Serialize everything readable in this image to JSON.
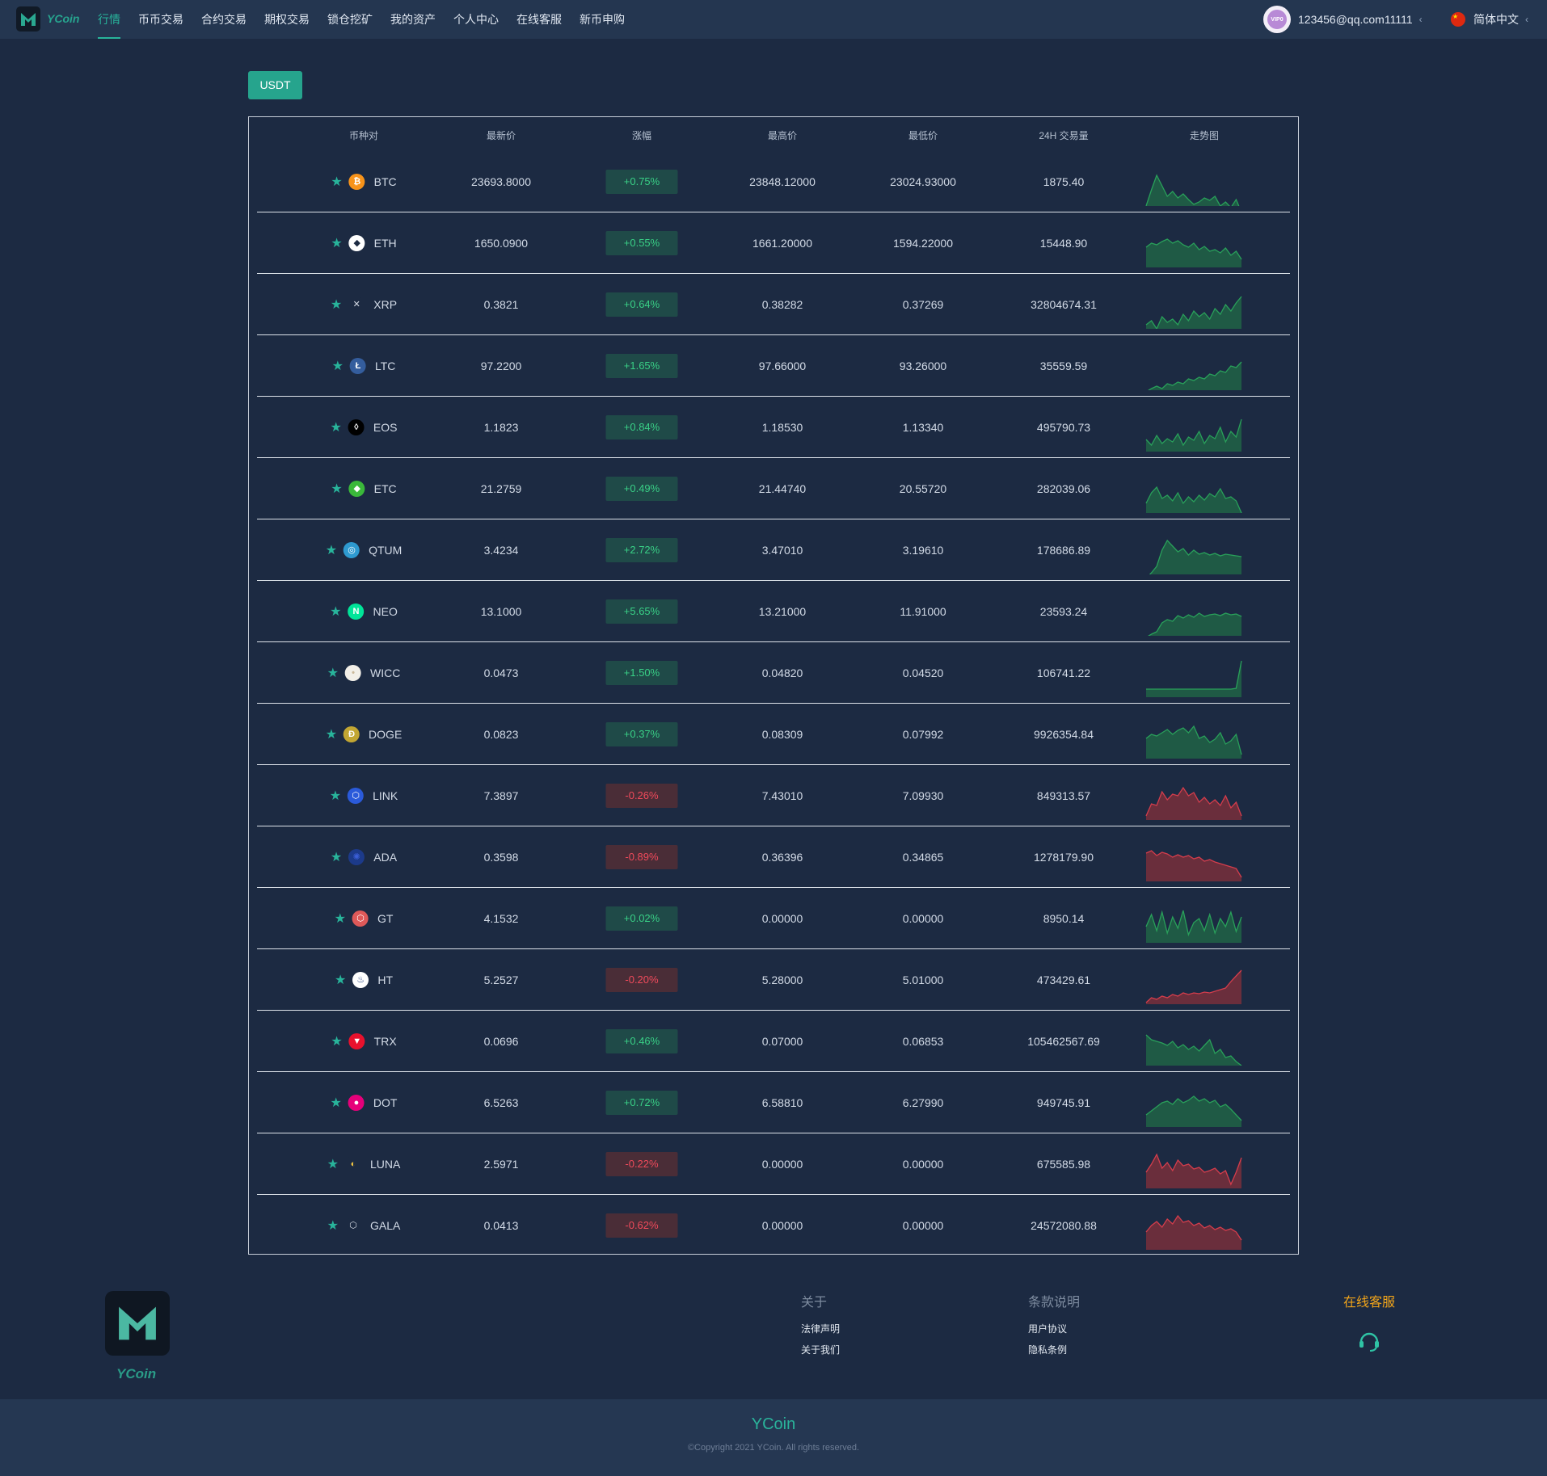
{
  "header": {
    "logo_text": "YCoin",
    "nav": [
      "行情",
      "币币交易",
      "合约交易",
      "期权交易",
      "锁仓挖矿",
      "我的资产",
      "个人中心",
      "在线客服",
      "新币申购"
    ],
    "active_index": 0,
    "avatar_badge": "VIP0",
    "user_email": "123456@qq.com11111",
    "user_caret": "‹",
    "language": "简体中文",
    "language_caret": "‹"
  },
  "market": {
    "tab": "USDT",
    "columns": [
      "币种对",
      "最新价",
      "涨幅",
      "最高价",
      "最低价",
      "24H 交易量",
      "走势图"
    ],
    "rows": [
      {
        "symbol": "BTC",
        "icon": "bitcoin-icon",
        "icon_color": "#f7931a",
        "price": "23693.8000",
        "change": "+0.75%",
        "direction": "up",
        "high": "23848.12000",
        "low": "23024.93000",
        "volume": "1875.40",
        "trend": [
          60,
          40,
          22,
          35,
          48,
          42,
          50,
          45,
          52,
          58,
          55,
          50,
          53,
          48,
          60,
          55,
          62,
          52,
          68
        ]
      },
      {
        "symbol": "ETH",
        "icon": "ethereum-icon",
        "icon_color": "#ffffff",
        "price": "1650.0900",
        "change": "+0.55%",
        "direction": "up",
        "high": "1661.20000",
        "low": "1594.22000",
        "volume": "15448.90",
        "trend": [
          35,
          30,
          32,
          28,
          25,
          30,
          27,
          32,
          35,
          30,
          38,
          34,
          40,
          38,
          42,
          36,
          45,
          40,
          50
        ]
      },
      {
        "symbol": "XRP",
        "icon": "xrp-icon",
        "icon_color": "#1c2a42",
        "price": "0.3821",
        "change": "+0.64%",
        "direction": "up",
        "high": "0.38282",
        "low": "0.37269",
        "volume": "32804674.31",
        "trend": [
          55,
          50,
          60,
          45,
          52,
          48,
          55,
          42,
          50,
          38,
          45,
          40,
          48,
          35,
          42,
          30,
          38,
          28,
          20
        ]
      },
      {
        "symbol": "LTC",
        "icon": "litecoin-icon",
        "icon_color": "#345d9d",
        "price": "97.2200",
        "change": "+1.65%",
        "direction": "up",
        "high": "97.66000",
        "low": "93.26000",
        "volume": "35559.59",
        "trend": [
          62,
          58,
          55,
          58,
          52,
          54,
          50,
          52,
          46,
          48,
          44,
          46,
          40,
          42,
          36,
          38,
          30,
          32,
          25
        ]
      },
      {
        "symbol": "EOS",
        "icon": "eos-icon",
        "icon_color": "#000000",
        "price": "1.1823",
        "change": "+0.84%",
        "direction": "up",
        "high": "1.18530",
        "low": "1.13340",
        "volume": "495790.73",
        "trend": [
          45,
          52,
          40,
          50,
          44,
          48,
          38,
          52,
          42,
          46,
          35,
          50,
          40,
          44,
          30,
          48,
          35,
          42,
          20
        ]
      },
      {
        "symbol": "ETC",
        "icon": "etc-icon",
        "icon_color": "#3ab83a",
        "price": "21.2759",
        "change": "+0.49%",
        "direction": "up",
        "high": "21.44740",
        "low": "20.55720",
        "volume": "282039.06",
        "trend": [
          48,
          35,
          28,
          42,
          38,
          45,
          35,
          48,
          40,
          46,
          38,
          44,
          36,
          40,
          30,
          42,
          40,
          45,
          60
        ]
      },
      {
        "symbol": "QTUM",
        "icon": "qtum-icon",
        "icon_color": "#2e9ad0",
        "price": "3.4234",
        "change": "+2.72%",
        "direction": "up",
        "high": "3.47010",
        "low": "3.19610",
        "volume": "178686.89",
        "trend": [
          65,
          58,
          50,
          30,
          18,
          25,
          32,
          28,
          36,
          30,
          35,
          33,
          36,
          34,
          37,
          35,
          36,
          37,
          38
        ]
      },
      {
        "symbol": "NEO",
        "icon": "neo-icon",
        "icon_color": "#00e599",
        "price": "13.1000",
        "change": "+5.65%",
        "direction": "up",
        "high": "13.21000",
        "low": "11.91000",
        "volume": "23593.24",
        "trend": [
          62,
          58,
          55,
          44,
          40,
          42,
          35,
          38,
          34,
          37,
          32,
          36,
          34,
          33,
          35,
          32,
          34,
          33,
          36
        ]
      },
      {
        "symbol": "WICC",
        "icon": "wicc-icon",
        "icon_color": "#f2efe8",
        "price": "0.0473",
        "change": "+1.50%",
        "direction": "up",
        "high": "0.04820",
        "low": "0.04520",
        "volume": "106741.22",
        "trend": [
          50,
          50,
          50,
          50,
          50,
          50,
          50,
          50,
          50,
          50,
          50,
          50,
          50,
          50,
          50,
          50,
          50,
          49,
          15
        ]
      },
      {
        "symbol": "DOGE",
        "icon": "doge-icon",
        "icon_color": "#c2a633",
        "price": "0.0823",
        "change": "+0.37%",
        "direction": "up",
        "high": "0.08309",
        "low": "0.07992",
        "volume": "9926354.84",
        "trend": [
          35,
          30,
          32,
          28,
          24,
          30,
          25,
          22,
          28,
          20,
          35,
          32,
          40,
          36,
          28,
          42,
          38,
          30,
          55
        ]
      },
      {
        "symbol": "LINK",
        "icon": "chainlink-icon",
        "icon_color": "#2a5ada",
        "price": "7.3897",
        "change": "-0.26%",
        "direction": "down",
        "high": "7.43010",
        "low": "7.09930",
        "volume": "849313.57",
        "trend": [
          55,
          40,
          42,
          25,
          35,
          28,
          30,
          20,
          30,
          26,
          38,
          32,
          40,
          35,
          42,
          30,
          45,
          38,
          55
        ]
      },
      {
        "symbol": "ADA",
        "icon": "cardano-icon",
        "icon_color": "#1c3a8a",
        "price": "0.3598",
        "change": "-0.89%",
        "direction": "down",
        "high": "0.36396",
        "low": "0.34865",
        "volume": "1278179.90",
        "trend": [
          25,
          22,
          28,
          24,
          26,
          30,
          27,
          30,
          28,
          32,
          30,
          35,
          33,
          36,
          38,
          40,
          42,
          44,
          55
        ]
      },
      {
        "symbol": "GT",
        "icon": "gatetoken-icon",
        "icon_color": "#de5959",
        "price": "4.1532",
        "change": "+0.02%",
        "direction": "up",
        "high": "0.00000",
        "low": "0.00000",
        "volume": "8950.14",
        "trend": [
          40,
          25,
          45,
          22,
          48,
          28,
          42,
          20,
          50,
          35,
          30,
          45,
          25,
          48,
          30,
          40,
          22,
          46,
          28
        ]
      },
      {
        "symbol": "HT",
        "icon": "huobi-icon",
        "icon_color": "#ffffff",
        "price": "5.2527",
        "change": "-0.20%",
        "direction": "down",
        "high": "5.28000",
        "low": "5.01000",
        "volume": "473429.61",
        "trend": [
          58,
          52,
          54,
          50,
          52,
          48,
          50,
          46,
          48,
          46,
          47,
          45,
          46,
          44,
          42,
          40,
          32,
          25,
          18
        ]
      },
      {
        "symbol": "TRX",
        "icon": "tron-icon",
        "icon_color": "#e8112d",
        "price": "0.0696",
        "change": "+0.46%",
        "direction": "up",
        "high": "0.07000",
        "low": "0.06853",
        "volume": "105462567.69",
        "trend": [
          22,
          28,
          30,
          32,
          35,
          30,
          38,
          34,
          40,
          36,
          42,
          35,
          28,
          45,
          40,
          50,
          48,
          55,
          60
        ]
      },
      {
        "symbol": "DOT",
        "icon": "polkadot-icon",
        "icon_color": "#e6007a",
        "price": "6.5263",
        "change": "+0.72%",
        "direction": "up",
        "high": "6.58810",
        "low": "6.27990",
        "volume": "949745.91",
        "trend": [
          45,
          40,
          35,
          30,
          28,
          32,
          25,
          30,
          27,
          22,
          28,
          25,
          30,
          27,
          35,
          32,
          38,
          45,
          52
        ]
      },
      {
        "symbol": "LUNA",
        "icon": "luna-icon",
        "icon_color": "#1c2a42",
        "price": "2.5971",
        "change": "-0.22%",
        "direction": "down",
        "high": "0.00000",
        "low": "0.00000",
        "volume": "675585.98",
        "trend": [
          40,
          30,
          18,
          35,
          28,
          38,
          25,
          32,
          30,
          36,
          34,
          40,
          38,
          35,
          42,
          38,
          55,
          40,
          22
        ]
      },
      {
        "symbol": "GALA",
        "icon": "gala-icon",
        "icon_color": "#1c2a42",
        "price": "0.0413",
        "change": "-0.62%",
        "direction": "down",
        "high": "0.00000",
        "low": "0.00000",
        "volume": "24572080.88",
        "trend": [
          38,
          30,
          25,
          32,
          22,
          28,
          18,
          26,
          24,
          30,
          27,
          33,
          30,
          35,
          32,
          36,
          34,
          38,
          48
        ]
      }
    ]
  },
  "footer": {
    "logo_text": "YCoin",
    "about_title": "关于",
    "about_links": [
      "法律声明",
      "关于我们"
    ],
    "terms_title": "条款说明",
    "terms_links": [
      "用户协议",
      "隐私条例"
    ],
    "service_title": "在线客服",
    "brand": "YCoin",
    "copyright": "©Copyright 2021 YCoin. All rights reserved."
  },
  "colors": {
    "accent": "#28b49b",
    "up": "#39d086",
    "down": "#f04a5b",
    "spark_up_line": "#29a05a",
    "spark_up_fill": "#1f5a45",
    "spark_down_line": "#d43d4c",
    "spark_down_fill": "#6a2e3c"
  }
}
